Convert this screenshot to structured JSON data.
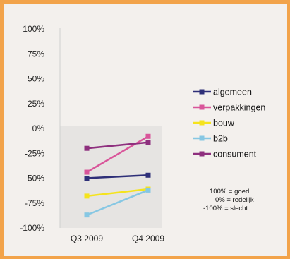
{
  "chart_data": {
    "type": "line",
    "categories": [
      "Q3 2009",
      "Q4 2009"
    ],
    "ylim": [
      -100,
      100
    ],
    "yticks": [
      "100%",
      "75%",
      "50%",
      "25%",
      "0%",
      "-25%",
      "-50%",
      "-75%",
      "-100%"
    ],
    "series": [
      {
        "name": "algemeen",
        "color": "#2e2f78",
        "values": [
          -50,
          -47
        ]
      },
      {
        "name": "verpakkingen",
        "color": "#d9559a",
        "values": [
          -44,
          -8
        ]
      },
      {
        "name": "bouw",
        "color": "#f5e31d",
        "values": [
          -68,
          -61
        ]
      },
      {
        "name": "b2b",
        "color": "#86c7e3",
        "values": [
          -87,
          -62
        ]
      },
      {
        "name": "consument",
        "color": "#8e2f7e",
        "values": [
          -20,
          -14
        ]
      }
    ],
    "legend_position": "right",
    "grid": false,
    "notes": [
      "100% = goed",
      "0% = redelijk",
      "-100% = slecht"
    ]
  }
}
